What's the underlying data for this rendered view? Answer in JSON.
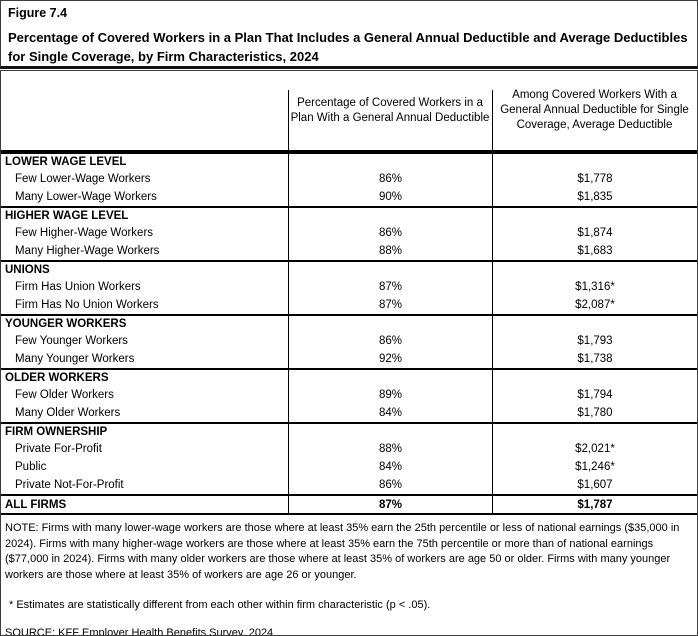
{
  "figure": {
    "label": "Figure 7.4",
    "title": "Percentage of Covered Workers in a Plan That Includes a General Annual Deductible and Average Deductibles for Single Coverage, by Firm Characteristics, 2024"
  },
  "table": {
    "columns": {
      "col2_header": "Percentage of Covered Workers in a Plan With a General Annual Deductible",
      "col3_header": "Among Covered Workers With a General Annual Deductible for Single Coverage, Average Deductible"
    },
    "rows": [
      {
        "type": "section",
        "label": "LOWER WAGE LEVEL",
        "pct": "",
        "amt": ""
      },
      {
        "type": "data",
        "label": "Few Lower-Wage Workers",
        "pct": "86%",
        "amt": "$1,778"
      },
      {
        "type": "data",
        "label": "Many Lower-Wage Workers",
        "pct": "90%",
        "amt": "$1,835"
      },
      {
        "type": "section",
        "label": "HIGHER WAGE LEVEL",
        "pct": "",
        "amt": ""
      },
      {
        "type": "data",
        "label": "Few Higher-Wage Workers",
        "pct": "86%",
        "amt": "$1,874"
      },
      {
        "type": "data",
        "label": "Many Higher-Wage Workers",
        "pct": "88%",
        "amt": "$1,683"
      },
      {
        "type": "section",
        "label": "UNIONS",
        "pct": "",
        "amt": ""
      },
      {
        "type": "data",
        "label": "Firm Has Union Workers",
        "pct": "87%",
        "amt": "$1,316*"
      },
      {
        "type": "data",
        "label": "Firm Has No Union Workers",
        "pct": "87%",
        "amt": "$2,087*"
      },
      {
        "type": "section",
        "label": "YOUNGER WORKERS",
        "pct": "",
        "amt": ""
      },
      {
        "type": "data",
        "label": "Few Younger Workers",
        "pct": "86%",
        "amt": "$1,793"
      },
      {
        "type": "data",
        "label": "Many Younger Workers",
        "pct": "92%",
        "amt": "$1,738"
      },
      {
        "type": "section",
        "label": "OLDER WORKERS",
        "pct": "",
        "amt": ""
      },
      {
        "type": "data",
        "label": "Few Older Workers",
        "pct": "89%",
        "amt": "$1,794"
      },
      {
        "type": "data",
        "label": "Many Older Workers",
        "pct": "84%",
        "amt": "$1,780"
      },
      {
        "type": "section",
        "label": "FIRM OWNERSHIP",
        "pct": "",
        "amt": ""
      },
      {
        "type": "data",
        "label": "Private For-Profit",
        "pct": "88%",
        "amt": "$2,021*"
      },
      {
        "type": "data",
        "label": "Public",
        "pct": "84%",
        "amt": "$1,246*"
      },
      {
        "type": "data",
        "label": "Private Not-For-Profit",
        "pct": "86%",
        "amt": "$1,607"
      },
      {
        "type": "total",
        "label": "ALL FIRMS",
        "pct": "87%",
        "amt": "$1,787"
      }
    ]
  },
  "notes": {
    "note": "NOTE: Firms with many lower-wage workers are those where at least 35% earn the 25th percentile or less of national earnings ($35,000 in 2024). Firms with many higher-wage workers are those where at least 35% earn the 75th percentile or more than of national earnings ($77,000 in 2024). Firms with many older workers are those where at least 35% of workers are age 50 or older. Firms with many younger workers are those where at least 35% of workers are age 26 or younger.",
    "asterisk": "* Estimates are statistically different from each other within firm characteristic (p < .05).",
    "source": "SOURCE: KFF Employer Health Benefits Survey, 2024"
  }
}
